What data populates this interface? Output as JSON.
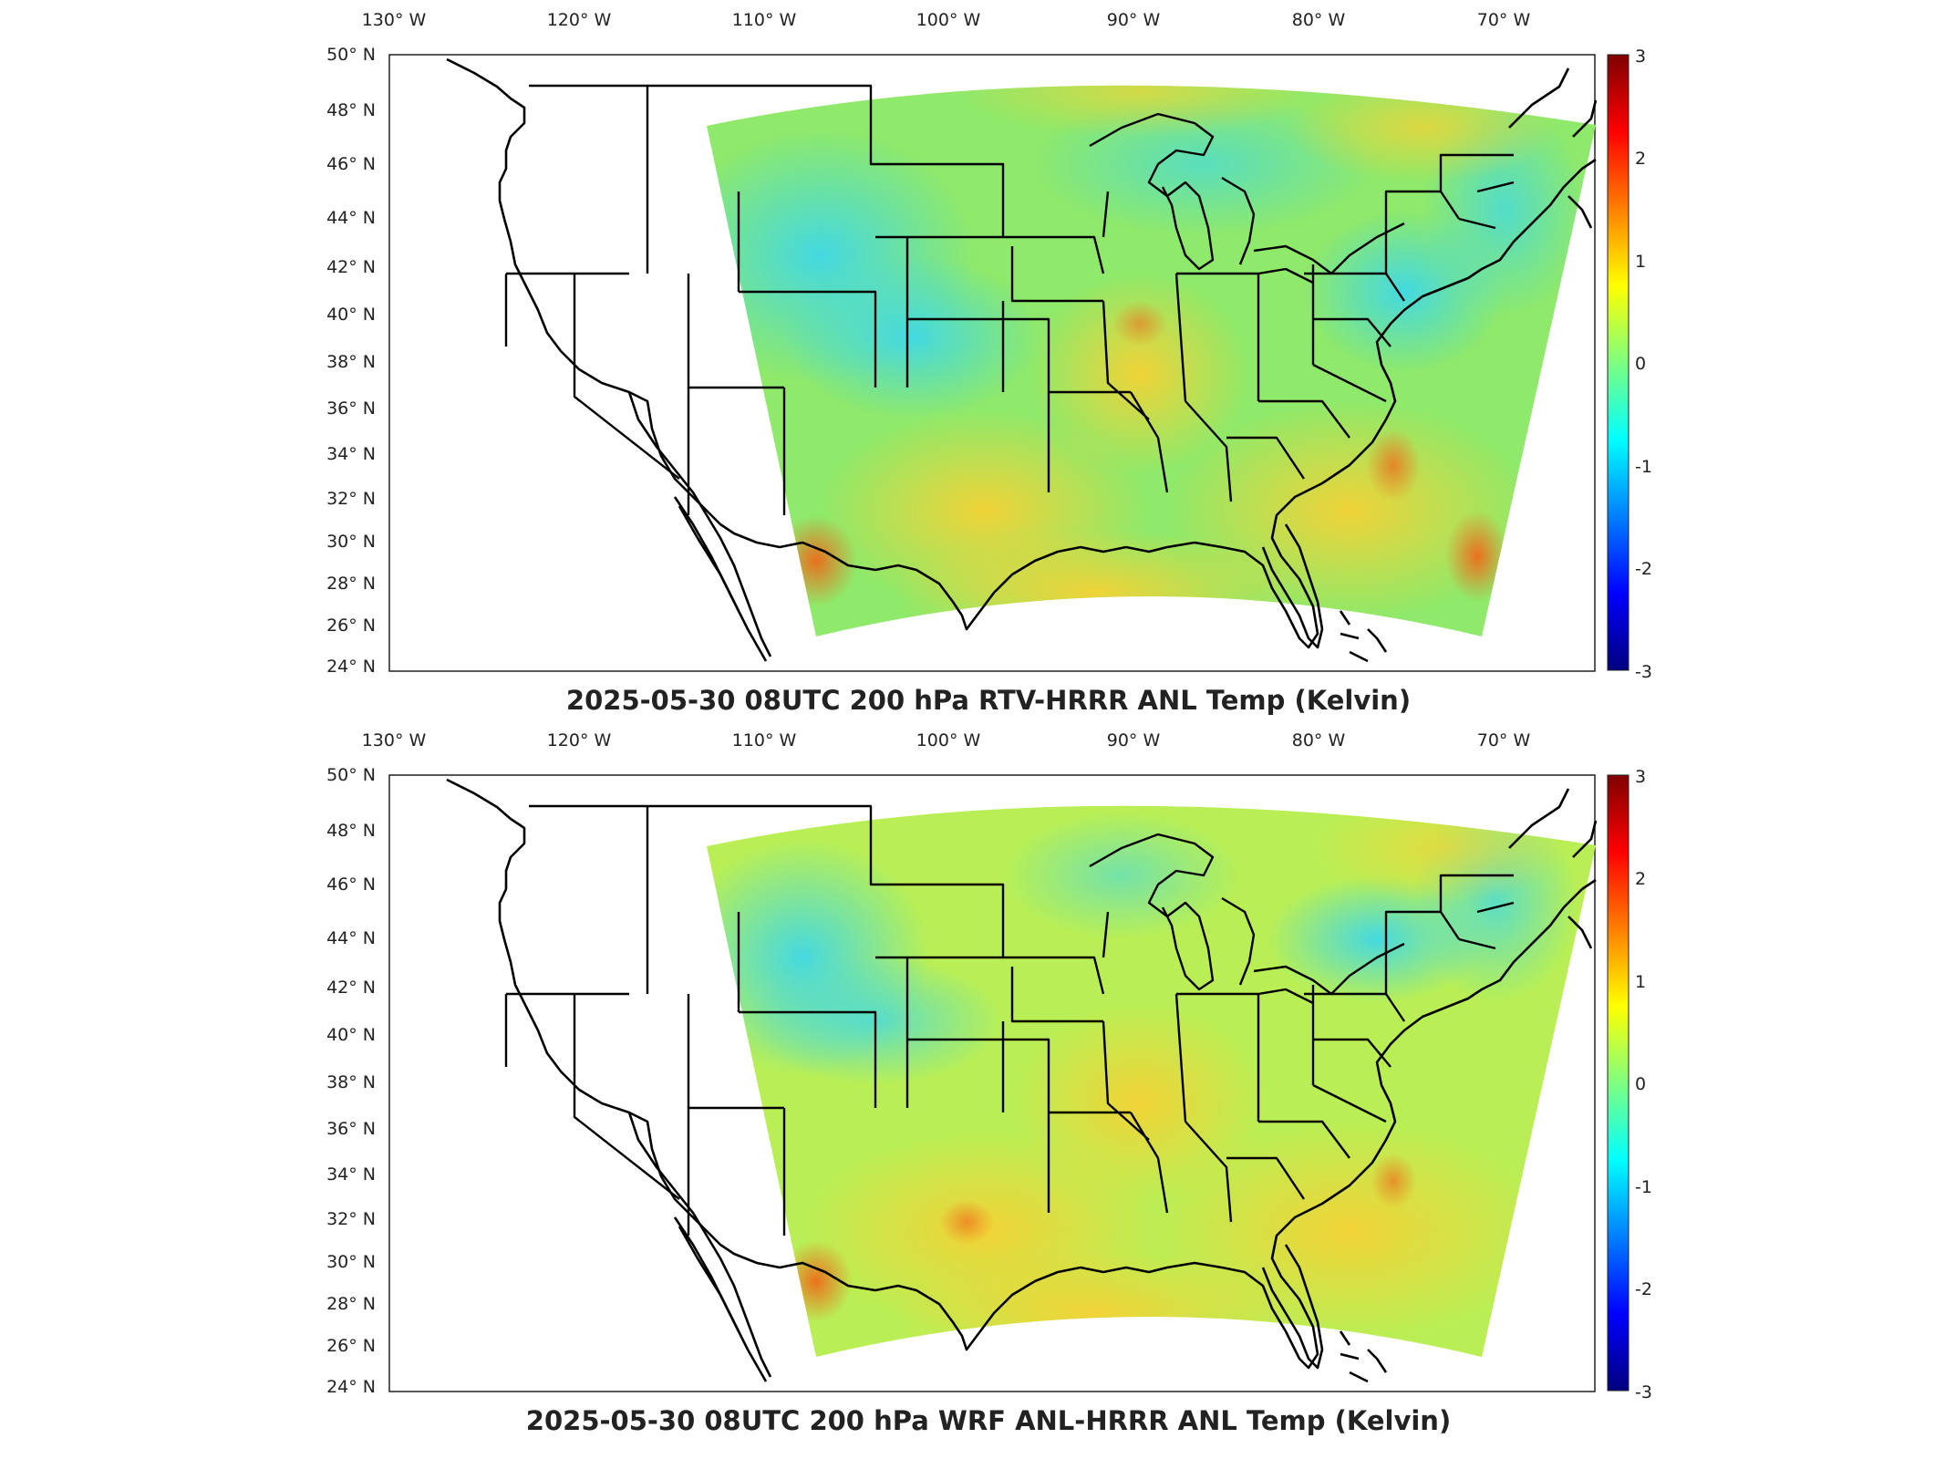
{
  "panels": [
    {
      "title": "2025-05-30 08UTC 200 hPa RTV-HRRR ANL Temp (Kelvin)",
      "top_lon_labels": [
        "130° W",
        "120° W",
        "110° W",
        "100° W",
        "90° W",
        "80° W",
        "70° W"
      ],
      "lat_labels": [
        "50° N",
        "48° N",
        "46° N",
        "44° N",
        "42° N",
        "40° N",
        "38° N",
        "36° N",
        "34° N",
        "32° N",
        "30° N",
        "28° N",
        "26° N",
        "24° N"
      ],
      "colorbar_ticks": [
        "3",
        "2",
        "1",
        "0",
        "-1",
        "-2",
        "-3"
      ]
    },
    {
      "title": "2025-05-30 08UTC 200 hPa WRF ANL-HRRR ANL Temp (Kelvin)",
      "top_lon_labels": [
        "130° W",
        "120° W",
        "110° W",
        "100° W",
        "90° W",
        "80° W",
        "70° W"
      ],
      "lat_labels": [
        "50° N",
        "48° N",
        "46° N",
        "44° N",
        "42° N",
        "40° N",
        "38° N",
        "36° N",
        "34° N",
        "32° N",
        "30° N",
        "28° N",
        "26° N",
        "24° N"
      ],
      "colorbar_ticks": [
        "3",
        "2",
        "1",
        "0",
        "-1",
        "-2",
        "-3"
      ]
    }
  ],
  "colormap": {
    "name": "jet",
    "range": [
      -3,
      3
    ],
    "colors": [
      "#00007f",
      "#0000ff",
      "#007fff",
      "#00ffff",
      "#7fff7f",
      "#ffff00",
      "#ff7f00",
      "#ff0000",
      "#7f0000"
    ]
  },
  "map_colors": {
    "field_base": "#8fe96a",
    "warm_area": "#f0d040",
    "cool_area": "#52e0e0",
    "hot_spot": "#f07a20"
  }
}
